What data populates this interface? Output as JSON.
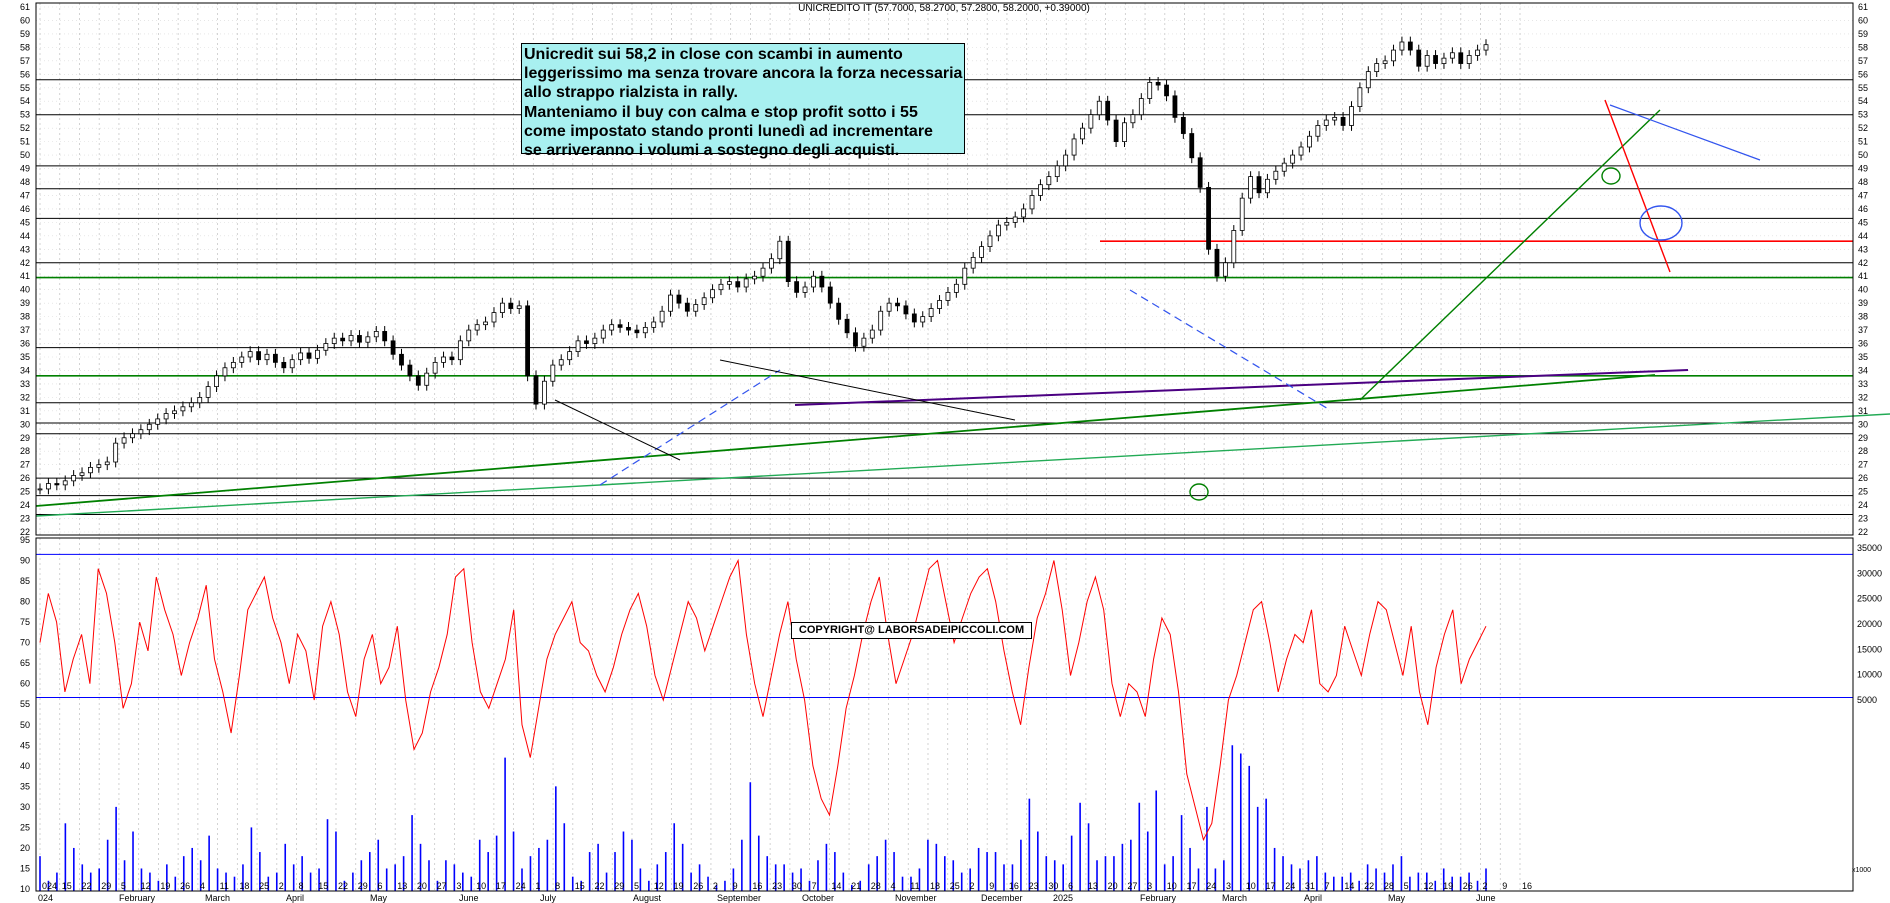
{
  "chart_title": "UNICREDITO IT (57.7000, 58.2700, 57.2800, 58.2000, +0.39000)",
  "annotation_lines": [
    "Unicredit sui 58,2 in close con scambi in aumento",
    "leggerissimo ma senza trovare ancora la forza necessaria",
    "allo strappo rialzista in rally.",
    "Manteniamo il buy con calma e stop profit sotto i 55",
    "come impostato stando pronti lunedì ad incrementare",
    "se arriveranno i volumi a sostegno degli acquisti."
  ],
  "copyright": "COPYRIGHT@ LABORSADEIPICCOLI.COM",
  "volume_unit_label": "x1000",
  "colors": {
    "price": "#000000",
    "volume_bars": "#0000ff",
    "oscillator": "#ff0000",
    "support_green": "#008000",
    "support_red": "#ff0000",
    "trend_purple": "#4b0082",
    "trend_lightgreen": "#22aa55",
    "annotation_bg": "#a8f0f0"
  },
  "chart_data": [
    {
      "type": "candlestick",
      "title": "UNICREDITO IT (57.7000, 58.2700, 57.2800, 58.2000, +0.39000)",
      "ylim": [
        21,
        61
      ],
      "y_ticks": [
        22,
        23,
        24,
        25,
        26,
        27,
        28,
        29,
        30,
        31,
        32,
        33,
        34,
        35,
        36,
        37,
        38,
        39,
        40,
        41,
        42,
        43,
        44,
        45,
        46,
        47,
        48,
        49,
        50,
        51,
        52,
        53,
        54,
        55,
        56,
        57,
        58,
        59,
        60,
        61
      ],
      "x_ticks": [
        "024",
        "15",
        "22",
        "29",
        "5",
        "12",
        "19",
        "26",
        "4",
        "11",
        "18",
        "25",
        "2",
        "8",
        "15",
        "22",
        "29",
        "6",
        "13",
        "20",
        "27",
        "3",
        "10",
        "17",
        "24",
        "1",
        "8",
        "15",
        "22",
        "29",
        "5",
        "12",
        "19",
        "26",
        "2",
        "9",
        "16",
        "23",
        "30",
        "7",
        "14",
        "21",
        "28",
        "4",
        "11",
        "18",
        "25",
        "2",
        "9",
        "16",
        "23",
        "30",
        "6",
        "13",
        "20",
        "27",
        "3",
        "10",
        "17",
        "24",
        "3",
        "10",
        "17",
        "24",
        "31",
        "7",
        "14",
        "22",
        "28",
        "5",
        "12",
        "19",
        "26",
        "2",
        "9",
        "16"
      ],
      "month_labels": [
        "024",
        "February",
        "March",
        "April",
        "May",
        "June",
        "July",
        "August",
        "September",
        "October",
        "November",
        "December",
        "2025",
        "February",
        "March",
        "April",
        "May",
        "June"
      ],
      "close_series": [
        25.2,
        25.6,
        25.5,
        25.8,
        26.2,
        26.4,
        26.8,
        27.0,
        27.2,
        28.6,
        29.0,
        29.3,
        29.6,
        30.0,
        30.4,
        30.8,
        31.0,
        31.3,
        31.6,
        32.0,
        32.8,
        33.6,
        34.2,
        34.6,
        35.0,
        35.4,
        34.8,
        35.2,
        34.6,
        34.2,
        34.8,
        35.3,
        34.9,
        35.5,
        36.0,
        36.4,
        36.2,
        36.6,
        36.1,
        36.5,
        36.9,
        36.2,
        35.2,
        34.4,
        33.6,
        32.9,
        33.8,
        34.6,
        35.0,
        34.8,
        36.2,
        37.0,
        37.4,
        37.6,
        38.3,
        39.0,
        38.6,
        38.8,
        33.6,
        31.5,
        33.2,
        34.4,
        34.8,
        35.4,
        36.2,
        36.0,
        36.4,
        37.0,
        37.4,
        37.2,
        37.0,
        36.8,
        37.2,
        37.6,
        38.4,
        39.6,
        39.0,
        38.4,
        38.9,
        39.4,
        40.0,
        40.4,
        40.6,
        40.2,
        40.8,
        41.0,
        41.6,
        42.3,
        43.6,
        40.6,
        39.8,
        40.2,
        41.0,
        40.2,
        39.0,
        37.8,
        36.8,
        35.8,
        36.4,
        37.0,
        38.4,
        39.0,
        38.8,
        38.2,
        37.6,
        38.0,
        38.6,
        39.2,
        39.8,
        40.4,
        41.6,
        42.4,
        43.2,
        44.0,
        44.8,
        45.0,
        45.4,
        46.0,
        47.0,
        47.8,
        48.4,
        49.2,
        50.0,
        51.2,
        52.0,
        53.0,
        54.0,
        52.6,
        51.0,
        52.4,
        53.0,
        54.2,
        55.4,
        55.2,
        54.4,
        52.8,
        51.6,
        49.8,
        47.6,
        43.0,
        41.0,
        42.0,
        44.4,
        46.8,
        48.4,
        47.2,
        48.2,
        48.8,
        49.4,
        50.0,
        50.6,
        51.4,
        52.2,
        52.6,
        52.8,
        52.2,
        53.6,
        55.0,
        56.2,
        56.8,
        57.0,
        57.8,
        58.4,
        57.8,
        56.6,
        57.4,
        56.8,
        57.2,
        57.6,
        56.8,
        57.4,
        57.8,
        58.2
      ],
      "last": {
        "open": 57.7,
        "high": 58.27,
        "low": 57.28,
        "close": 58.2,
        "change": 0.39
      },
      "annotations": {
        "horizontal_supports_green": [
          40.9,
          33.6
        ],
        "horizontal_support_red": 43.6,
        "horizontal_black_levels": [
          55.6,
          53.0,
          49.2,
          47.5,
          45.3,
          42.0,
          35.7,
          31.6,
          30.1,
          29.3,
          26.0,
          24.7,
          23.3
        ]
      }
    },
    {
      "type": "bar",
      "title": "",
      "ylim": [
        0,
        35000
      ],
      "y_ticks": [
        5000,
        10000,
        15000,
        20000,
        25000,
        30000,
        35000
      ],
      "y_labels_left": [
        10,
        15,
        20,
        25,
        30,
        35,
        40,
        45,
        50,
        55,
        60,
        65,
        70,
        75,
        80,
        85,
        90,
        95
      ],
      "overbought_line": 91.5,
      "volume_level_line": 5500,
      "volume_series": [
        18,
        12,
        14,
        26,
        20,
        16,
        14,
        15,
        22,
        30,
        17,
        24,
        15,
        14,
        12,
        16,
        13,
        18,
        20,
        17,
        23,
        15,
        14,
        13,
        16,
        25,
        19,
        13,
        14,
        21,
        16,
        18,
        14,
        15,
        27,
        24,
        12,
        14,
        17,
        19,
        22,
        15,
        16,
        18,
        28,
        21,
        17,
        12,
        17,
        16,
        14,
        13,
        22,
        19,
        23,
        42,
        24,
        15,
        18,
        20,
        22,
        35,
        26,
        13,
        12,
        19,
        21,
        14,
        19,
        24,
        22,
        15,
        12,
        16,
        19,
        26,
        21,
        14,
        16,
        13,
        11,
        12,
        15,
        22,
        36,
        23,
        18,
        16,
        16,
        14,
        15,
        12,
        17,
        21,
        19,
        14,
        11,
        12,
        16,
        18,
        22,
        19,
        13,
        13,
        15,
        22,
        21,
        18,
        17,
        14,
        15,
        20,
        19,
        19,
        16,
        16,
        22,
        32,
        24,
        18,
        17,
        16,
        23,
        31,
        26,
        17,
        18,
        18,
        21,
        22,
        31,
        24,
        34,
        16,
        18,
        28,
        20,
        15,
        30,
        15,
        17,
        45,
        43,
        40,
        30,
        32,
        20,
        18,
        16,
        15,
        17,
        18,
        14,
        13,
        13,
        14,
        12,
        16,
        15,
        14,
        16,
        18,
        13,
        14,
        14,
        12,
        15,
        13,
        13,
        14,
        12,
        15
      ],
      "rsi_series": [
        70,
        82,
        75,
        58,
        66,
        72,
        60,
        88,
        82,
        70,
        54,
        60,
        75,
        68,
        86,
        78,
        72,
        62,
        70,
        76,
        84,
        66,
        58,
        48,
        62,
        78,
        82,
        86,
        76,
        70,
        60,
        72,
        68,
        56,
        74,
        80,
        72,
        58,
        52,
        66,
        72,
        60,
        64,
        74,
        56,
        44,
        48,
        58,
        64,
        72,
        86,
        88,
        70,
        58,
        54,
        60,
        66,
        78,
        50,
        42,
        54,
        66,
        72,
        76,
        80,
        70,
        68,
        62,
        58,
        64,
        72,
        78,
        82,
        74,
        62,
        56,
        64,
        72,
        80,
        76,
        68,
        74,
        80,
        86,
        90,
        72,
        60,
        52,
        62,
        72,
        80,
        66,
        56,
        40,
        32,
        28,
        40,
        54,
        62,
        72,
        80,
        86,
        72,
        60,
        66,
        72,
        80,
        88,
        90,
        80,
        70,
        76,
        82,
        86,
        88,
        80,
        68,
        58,
        50,
        64,
        76,
        82,
        90,
        78,
        62,
        70,
        80,
        86,
        78,
        60,
        52,
        60,
        58,
        52,
        66,
        76,
        72,
        58,
        38,
        30,
        22,
        26,
        40,
        56,
        62,
        70,
        78,
        80,
        70,
        58,
        66,
        72,
        70,
        78,
        60,
        58,
        62,
        74,
        68,
        62,
        72,
        80,
        78,
        70,
        62,
        74,
        58,
        50,
        64,
        72,
        78,
        60,
        66,
        70,
        74
      ]
    }
  ]
}
